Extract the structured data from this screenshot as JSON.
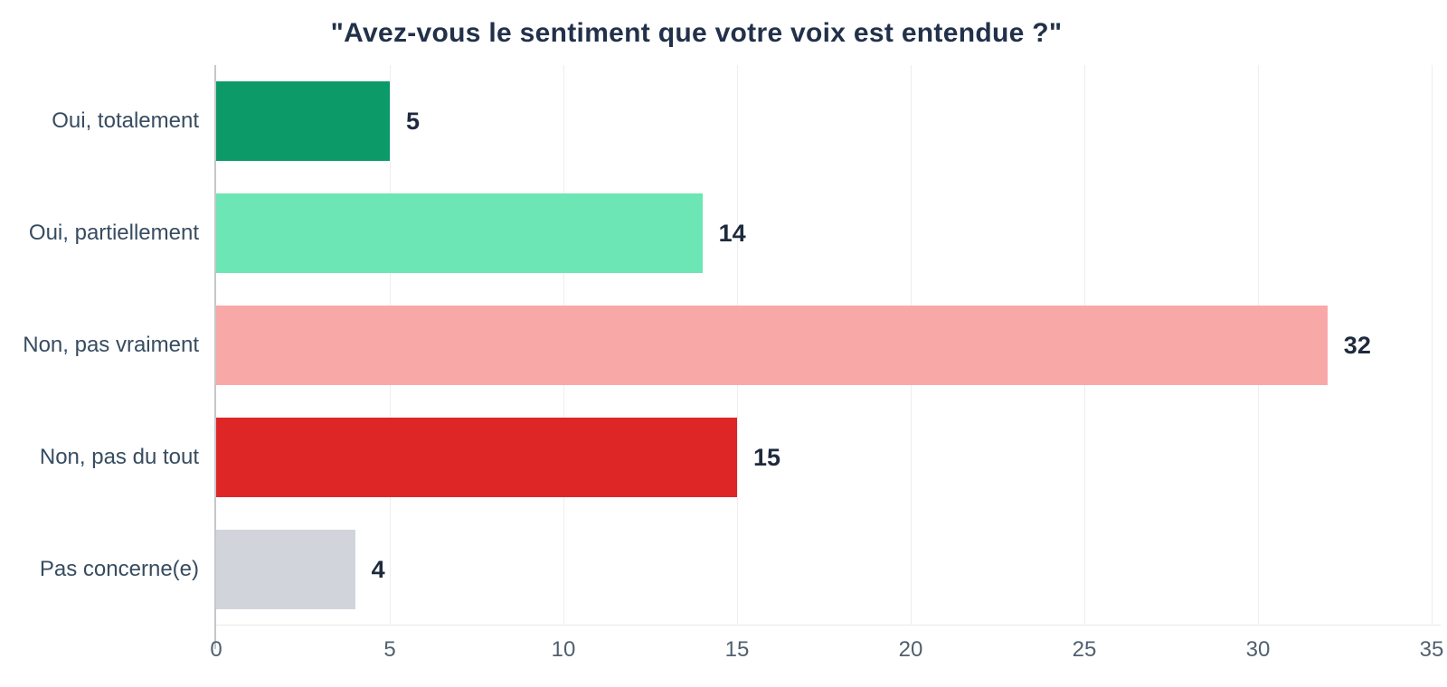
{
  "chart_data": {
    "type": "bar",
    "orientation": "horizontal",
    "title": "\"Avez-vous le sentiment que votre voix est entendue ?\"",
    "categories": [
      "Oui, totalement",
      "Oui, partiellement",
      "Non, pas vraiment",
      "Non, pas du tout",
      "Pas concerne(e)"
    ],
    "values": [
      5,
      14,
      32,
      15,
      4
    ],
    "value_labels": [
      "5",
      "14",
      "32",
      "15",
      "4"
    ],
    "bar_colors": [
      "#0B9A68",
      "#6CE6B4",
      "#F9A8A8",
      "#DF2626",
      "#D1D5DB"
    ],
    "x_ticks": [
      0,
      5,
      10,
      15,
      20,
      25,
      30,
      35
    ],
    "xlim": [
      0,
      35
    ],
    "xlabel": "",
    "ylabel": "",
    "grid": "vertical",
    "legend": "none",
    "style_colors": {
      "title_text": "#22314A",
      "category_text": "#374C60",
      "value_text": "#1F2A3E",
      "tick_text": "#51606F",
      "gridline": "#EDEDF2",
      "axis_line": "#C6C7CA",
      "baseline": "#E8EAEE",
      "background": "#FFFFFF"
    }
  }
}
